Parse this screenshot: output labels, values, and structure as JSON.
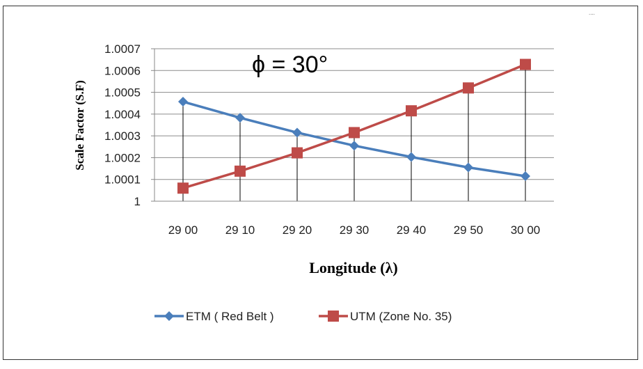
{
  "corner_mark": "....",
  "annotation": "ϕ = 30°",
  "chart_data": {
    "type": "line",
    "title": "",
    "xlabel": "Longitude (λ)",
    "ylabel": "Scale Factor  (S.F)",
    "categories": [
      "29 00",
      "29 10",
      "29 20",
      "29 30",
      "29 40",
      "29 50",
      "30 00"
    ],
    "ylim": [
      1,
      1.0007
    ],
    "yticks": [
      "1",
      "1.0001",
      "1.0002",
      "1.0003",
      "1.0004",
      "1.0005",
      "1.0006",
      "1.0007"
    ],
    "grid": "horizontal",
    "drop_lines": true,
    "legend_position": "bottom",
    "series": [
      {
        "name": "ETM ( Red Belt )",
        "color": "#4a7ebb",
        "marker": "diamond",
        "values": [
          1.000457,
          1.000383,
          1.000315,
          1.000255,
          1.000203,
          1.000155,
          1.000115
        ]
      },
      {
        "name": "UTM (Zone No. 35)",
        "color": "#be4b48",
        "marker": "square",
        "values": [
          1.00006,
          1.000138,
          1.000222,
          1.000315,
          1.000415,
          1.00052,
          1.000628
        ]
      }
    ]
  }
}
